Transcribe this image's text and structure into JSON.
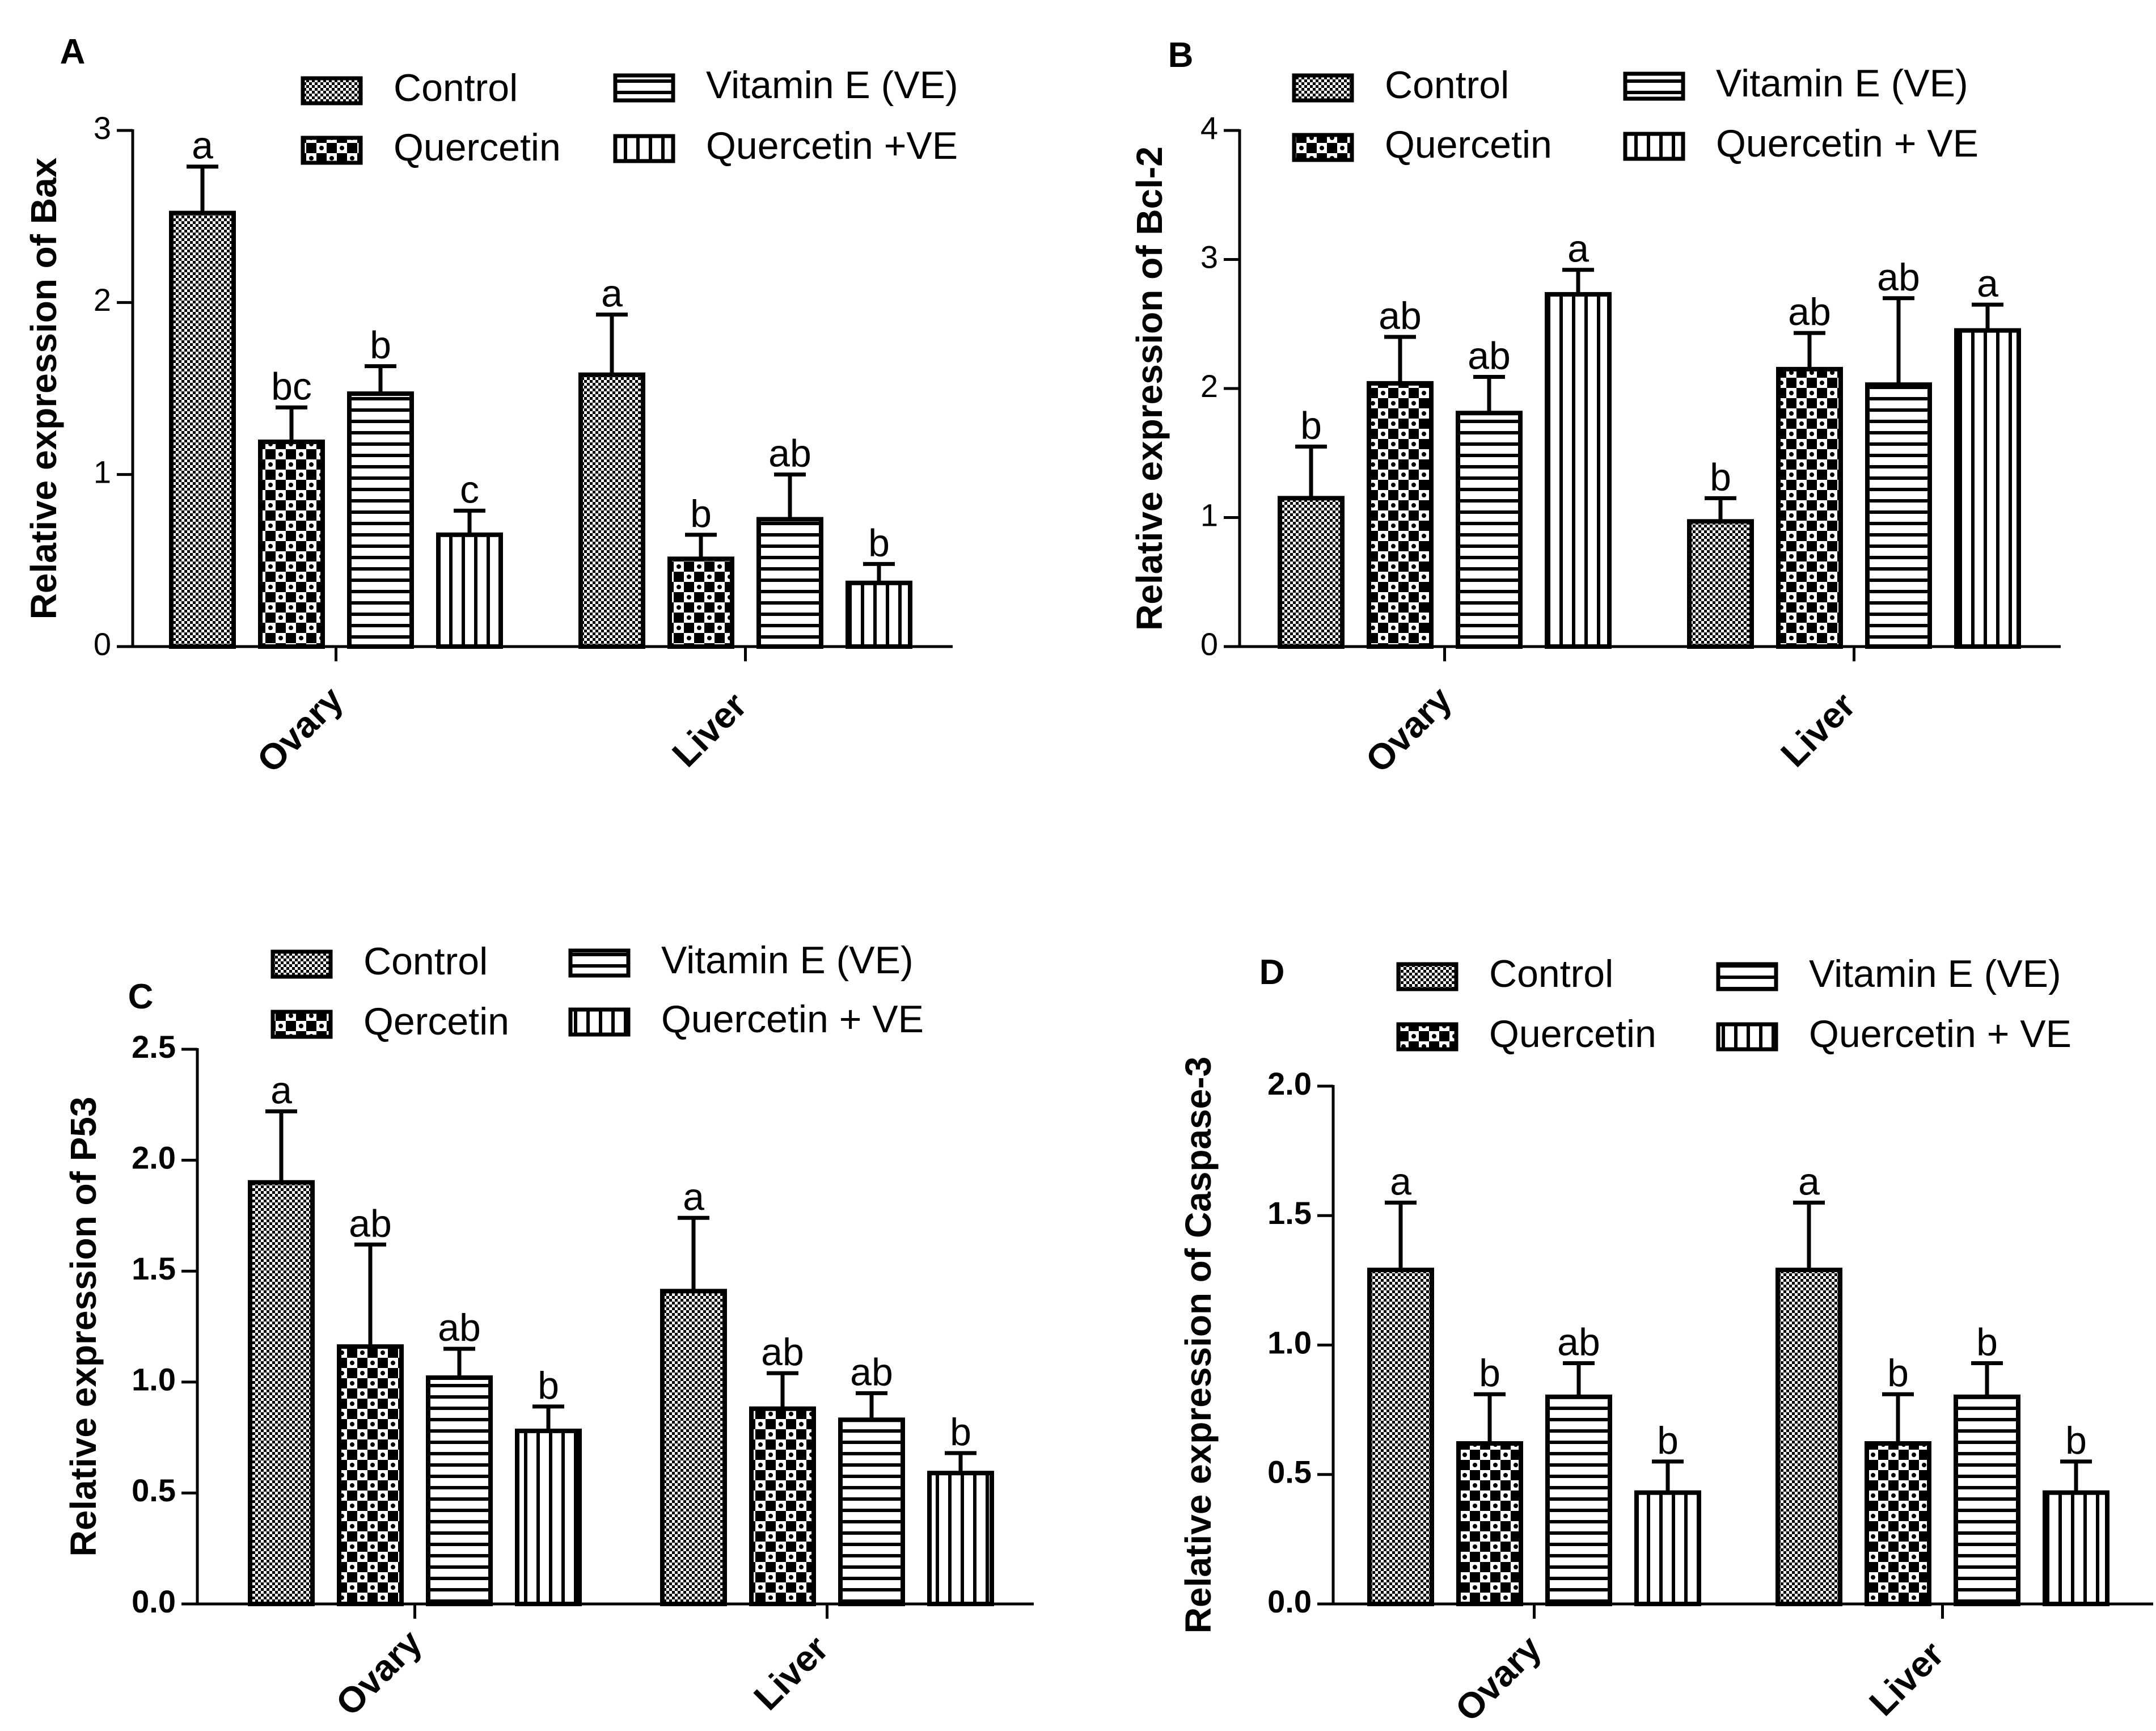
{
  "series_names": [
    "Control",
    "Quercetin",
    "Vitamin E (VE)",
    "Quercetin + VE"
  ],
  "chart_data": [
    {
      "type": "bar",
      "panel": "A",
      "ylabel": "Relative expression of Bax",
      "ylim": [
        0,
        3
      ],
      "yticks": [
        "0",
        "1",
        "2",
        "3"
      ],
      "categories": [
        "Ovary",
        "Liver"
      ],
      "legend": [
        "Control",
        "Quercetin",
        "Vitamin E (VE)",
        "Quercetin +VE"
      ],
      "series": [
        {
          "name": "Control",
          "values": [
            2.52,
            1.58
          ],
          "errors": [
            0.27,
            0.35
          ],
          "labels": [
            "a",
            "a"
          ]
        },
        {
          "name": "Quercetin",
          "values": [
            1.19,
            0.51
          ],
          "errors": [
            0.2,
            0.14
          ],
          "labels": [
            "bc",
            "b"
          ]
        },
        {
          "name": "Vitamin E (VE)",
          "values": [
            1.47,
            0.74
          ],
          "errors": [
            0.16,
            0.26
          ],
          "labels": [
            "b",
            "ab"
          ]
        },
        {
          "name": "Quercetin +VE",
          "values": [
            0.65,
            0.37
          ],
          "errors": [
            0.14,
            0.11
          ],
          "labels": [
            "c",
            "b"
          ]
        }
      ]
    },
    {
      "type": "bar",
      "panel": "B",
      "ylabel": "Relative expression of Bcl-2",
      "ylim": [
        0,
        4
      ],
      "yticks": [
        "0",
        "1",
        "2",
        "3",
        "4"
      ],
      "categories": [
        "Ovary",
        "Liver"
      ],
      "legend": [
        "Control",
        "Quercetin",
        "Vitamin E (VE)",
        "Quercetin + VE"
      ],
      "series": [
        {
          "name": "Control",
          "values": [
            1.15,
            0.97
          ],
          "errors": [
            0.4,
            0.18
          ],
          "labels": [
            "b",
            "b"
          ]
        },
        {
          "name": "Quercetin",
          "values": [
            2.04,
            2.15
          ],
          "errors": [
            0.36,
            0.28
          ],
          "labels": [
            "ab",
            "ab"
          ]
        },
        {
          "name": "Vitamin E (VE)",
          "values": [
            1.81,
            2.03
          ],
          "errors": [
            0.28,
            0.67
          ],
          "labels": [
            "ab",
            "ab"
          ]
        },
        {
          "name": "Quercetin + VE",
          "values": [
            2.73,
            2.45
          ],
          "errors": [
            0.19,
            0.2
          ],
          "labels": [
            "a",
            "a"
          ]
        }
      ]
    },
    {
      "type": "bar",
      "panel": "C",
      "ylabel": "Relative expression of P53",
      "ylim": [
        0,
        2.5
      ],
      "yticks": [
        "0.0",
        "0.5",
        "1.0",
        "1.5",
        "2.0",
        "2.5"
      ],
      "categories": [
        "Ovary",
        "Liver"
      ],
      "legend": [
        "Control",
        "Qercetin",
        "Vitamin E (VE)",
        "Quercetin + VE"
      ],
      "series": [
        {
          "name": "Control",
          "values": [
            1.9,
            1.41
          ],
          "errors": [
            0.32,
            0.33
          ],
          "labels": [
            "a",
            "a"
          ]
        },
        {
          "name": "Qercetin",
          "values": [
            1.16,
            0.88
          ],
          "errors": [
            0.46,
            0.16
          ],
          "labels": [
            "ab",
            "ab"
          ]
        },
        {
          "name": "Vitamin E (VE)",
          "values": [
            1.02,
            0.83
          ],
          "errors": [
            0.13,
            0.12
          ],
          "labels": [
            "ab",
            "ab"
          ]
        },
        {
          "name": "Quercetin + VE",
          "values": [
            0.78,
            0.59
          ],
          "errors": [
            0.11,
            0.09
          ],
          "labels": [
            "b",
            "b"
          ]
        }
      ]
    },
    {
      "type": "bar",
      "panel": "D",
      "ylabel": "Relative expression of Caspase-3",
      "ylim": [
        0,
        2.0
      ],
      "yticks": [
        "0.0",
        "0.5",
        "1.0",
        "1.5",
        "2.0"
      ],
      "categories": [
        "Ovary",
        "Liver"
      ],
      "legend": [
        "Control",
        "Quercetin",
        "Vitamin E (VE)",
        "Quercetin + VE"
      ],
      "series": [
        {
          "name": "Control",
          "values": [
            1.29,
            1.29
          ],
          "errors": [
            0.26,
            0.26
          ],
          "labels": [
            "a",
            "a"
          ]
        },
        {
          "name": "Quercetin",
          "values": [
            0.62,
            0.62
          ],
          "errors": [
            0.19,
            0.19
          ],
          "labels": [
            "b",
            "b"
          ]
        },
        {
          "name": "Vitamin E (VE)",
          "values": [
            0.8,
            0.8
          ],
          "errors": [
            0.13,
            0.13
          ],
          "labels": [
            "ab",
            "b"
          ]
        },
        {
          "name": "Quercetin + VE",
          "values": [
            0.43,
            0.43
          ],
          "errors": [
            0.12,
            0.12
          ],
          "labels": [
            "b",
            "b"
          ]
        }
      ]
    }
  ]
}
